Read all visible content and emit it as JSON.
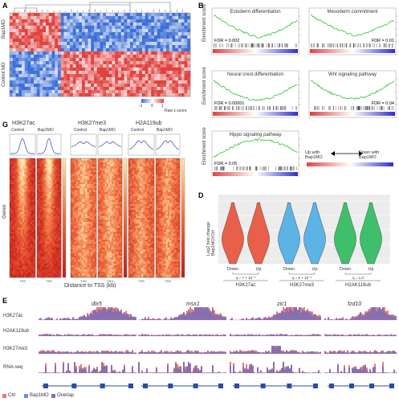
{
  "panels": {
    "a": {
      "label": "A",
      "row_labels": [
        "Bap1MO",
        "Control MO"
      ],
      "colorbar": {
        "ticks": [
          "-1",
          "0",
          "1"
        ],
        "title": "Raw z score"
      },
      "colors": {
        "low": "#3d6fd6",
        "high": "#e0433f"
      }
    },
    "b": {
      "label": "B",
      "ylabel": "Enrichment score",
      "plots": [
        {
          "title": "Ectoderm differentiation",
          "fdr": "FDR = 0.002"
        },
        {
          "title": "Mesoderm commitment",
          "fdr": "FDR = 0.01"
        },
        {
          "title": "Neural crest differentiation",
          "fdr": "FDR = 0.00001"
        },
        {
          "title": "Wnt signaling pathway",
          "fdr": "FDR = 0.04"
        },
        {
          "title": "Hippo signaling pathway",
          "fdr": "FDR = 0.05"
        }
      ],
      "legend_left": "Up with Bap1MO",
      "legend_right": "Down with Bap1MO",
      "curve_color": "#2fc42f"
    },
    "g": {
      "label": "G",
      "marks": [
        "H3K27ac",
        "H3K27me3",
        "H2A119ub"
      ],
      "conditions": [
        "Control",
        "Bap1MO"
      ],
      "ylabel": "Genes",
      "xlabel": "Distance to TSS (kb)"
    },
    "d": {
      "label": "D",
      "ylabel": "Log2 fold change Bap1MO/Ctrl",
      "groups": [
        {
          "mark": "H3K27ac",
          "q": "q = 7 × 10⁻¹"
        },
        {
          "mark": "H3K27me3",
          "q": "q = 5 × 10⁻¹"
        },
        {
          "mark": "H2AK119ub",
          "q": "q = 1.0"
        }
      ],
      "categories": [
        "Down",
        "Up"
      ],
      "colors": [
        "#e8604a",
        "#5cb3e6",
        "#3fbf6c"
      ]
    },
    "e": {
      "label": "E",
      "genes": [
        "dlx5",
        "msx1",
        "zic1",
        "fzd10"
      ],
      "tracks": [
        "H3K27ac",
        "H2AK119ub",
        "H3K27me3",
        "RNA-seq"
      ],
      "legend": [
        {
          "name": "Ctrl",
          "color": "#f07a6a"
        },
        {
          "name": "Bap1MO",
          "color": "#6a8ed9"
        },
        {
          "name": "Overlap",
          "color": "#8a6fb0"
        }
      ]
    }
  }
}
